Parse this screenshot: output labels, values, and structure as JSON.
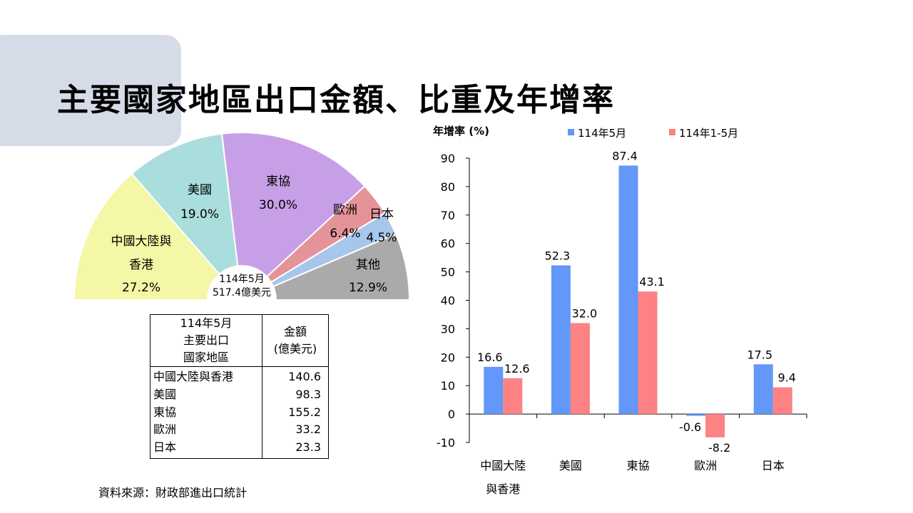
{
  "title": "主要國家地區出口金額、比重及年增率",
  "source": "資料來源：財政部進出口統計",
  "colors": {
    "pie": [
      "#f3f7a6",
      "#a9dedd",
      "#c79fe6",
      "#e49499",
      "#a6c6ec",
      "#aaaaaa"
    ],
    "bar_series": [
      "#6397f8",
      "#fd8283"
    ],
    "corner": "#d6dbe8"
  },
  "pie_chart": {
    "type": "pie",
    "center_line1": "114年5月",
    "center_line2": "517.4億美元",
    "slices": [
      {
        "label_lines": [
          "中國大陸與",
          "香港"
        ],
        "value": 27.2,
        "pct": "27.2%"
      },
      {
        "label_lines": [
          "美國"
        ],
        "value": 19.0,
        "pct": "19.0%"
      },
      {
        "label_lines": [
          "東協"
        ],
        "value": 30.0,
        "pct": "30.0%"
      },
      {
        "label_lines": [
          "歐洲"
        ],
        "value": 6.4,
        "pct": "6.4%"
      },
      {
        "label_lines": [
          "日本"
        ],
        "value": 4.5,
        "pct": "4.5%"
      },
      {
        "label_lines": [
          "其他"
        ],
        "value": 12.9,
        "pct": "12.9%"
      }
    ]
  },
  "table": {
    "header_col1": [
      "114年5月",
      "主要出口",
      "國家地區"
    ],
    "header_col2": [
      "金額",
      "(億美元)"
    ],
    "rows": [
      {
        "name": "中國大陸與香港",
        "amount": "140.6"
      },
      {
        "name": "美國",
        "amount": "98.3"
      },
      {
        "name": "東協",
        "amount": "155.2"
      },
      {
        "name": "歐洲",
        "amount": "33.2"
      },
      {
        "name": "日本",
        "amount": "23.3"
      }
    ]
  },
  "chart_data": {
    "type": "bar",
    "ylabel": "年增率 (%)",
    "ylim": [
      -10,
      90
    ],
    "yticks": [
      "-10",
      "0",
      "10",
      "20",
      "30",
      "40",
      "50",
      "60",
      "70",
      "80",
      "90"
    ],
    "categories": [
      [
        "中國大陸",
        "與香港"
      ],
      [
        "美國"
      ],
      [
        "東協"
      ],
      [
        "歐洲"
      ],
      [
        "日本"
      ]
    ],
    "series": [
      {
        "name": "114年5月",
        "values": [
          16.6,
          52.3,
          87.4,
          -0.6,
          17.5
        ],
        "labels": [
          "16.6",
          "52.3",
          "87.4",
          "-0.6",
          "17.5"
        ]
      },
      {
        "name": "114年1-5月",
        "values": [
          12.6,
          32.0,
          43.1,
          -8.2,
          9.4
        ],
        "labels": [
          "12.6",
          "32.0",
          "43.1",
          "-8.2",
          "9.4"
        ]
      }
    ],
    "legend": "top",
    "grid": false
  }
}
